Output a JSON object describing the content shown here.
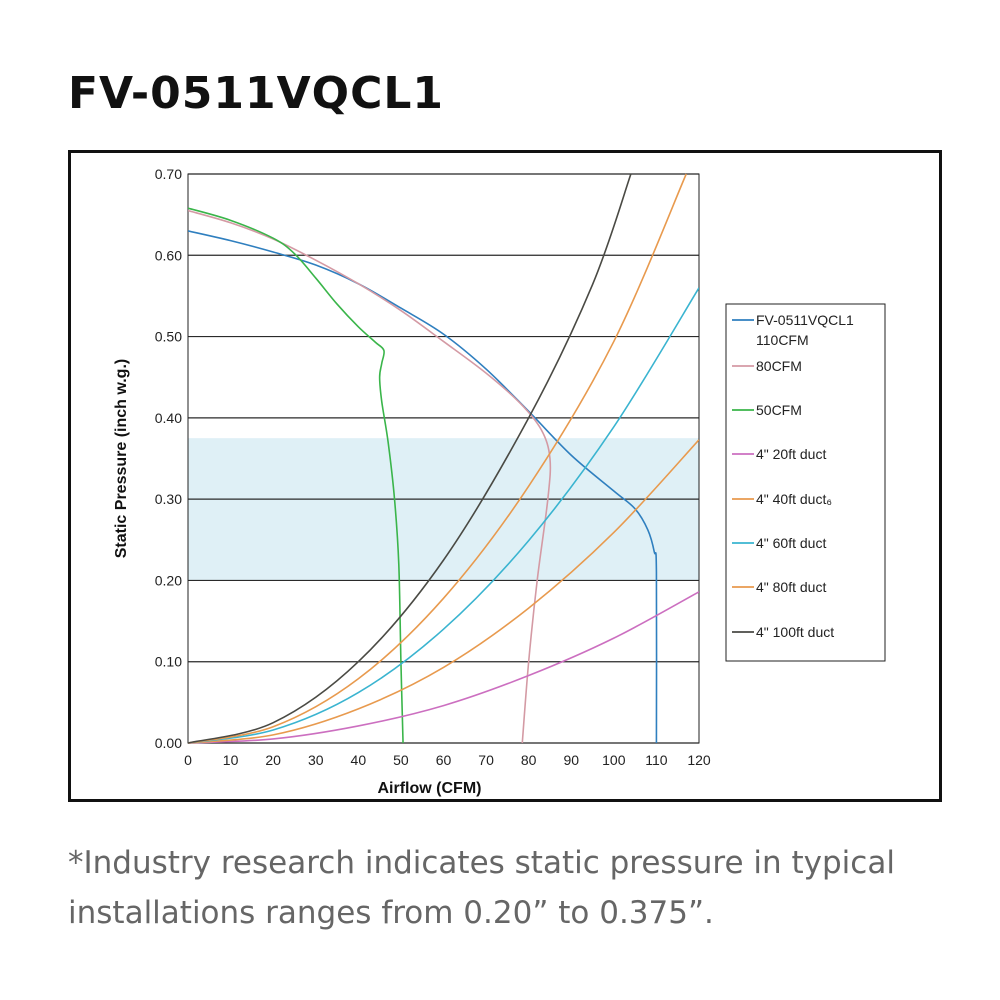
{
  "page": {
    "title": "FV-0511VQCL1",
    "footnote": "*Industry research indicates static pressure in typical installations ranges from 0.20” to 0.375”."
  },
  "chart_data": {
    "type": "line",
    "xlabel": "Airflow (CFM)",
    "ylabel": "Static Pressure (inch w.g.)",
    "xlim": [
      0,
      120
    ],
    "ylim": [
      0,
      0.7
    ],
    "x_ticks": [
      "0",
      "10",
      "20",
      "30",
      "40",
      "50",
      "60",
      "70",
      "80",
      "90",
      "100",
      "110",
      "120"
    ],
    "y_ticks": [
      "0.00",
      "0.10",
      "0.20",
      "0.30",
      "0.40",
      "0.50",
      "0.60",
      "0.70"
    ],
    "grid": "horizontal",
    "legend_position": "right",
    "highlight_band": {
      "y_from": 0.2,
      "y_to": 0.375,
      "color": "#dff0f6"
    },
    "series": [
      {
        "name": "FV-0511VQCL1",
        "name_line2": "110CFM",
        "color": "#2f7fbf",
        "points": [
          [
            0,
            0.63
          ],
          [
            10,
            0.618
          ],
          [
            20,
            0.604
          ],
          [
            30,
            0.588
          ],
          [
            40,
            0.565
          ],
          [
            50,
            0.535
          ],
          [
            60,
            0.503
          ],
          [
            70,
            0.46
          ],
          [
            80,
            0.408
          ],
          [
            90,
            0.354
          ],
          [
            100,
            0.31
          ],
          [
            105,
            0.288
          ],
          [
            108,
            0.262
          ],
          [
            109.5,
            0.235
          ],
          [
            110,
            0.21
          ],
          [
            110,
            0
          ]
        ]
      },
      {
        "name": "80CFM",
        "color": "#d49aa4",
        "points": [
          [
            0,
            0.655
          ],
          [
            10,
            0.64
          ],
          [
            20,
            0.62
          ],
          [
            30,
            0.594
          ],
          [
            40,
            0.565
          ],
          [
            50,
            0.532
          ],
          [
            60,
            0.494
          ],
          [
            70,
            0.455
          ],
          [
            78,
            0.418
          ],
          [
            83,
            0.385
          ],
          [
            85,
            0.35
          ],
          [
            84.5,
            0.3
          ],
          [
            82,
            0.2
          ],
          [
            80,
            0.1
          ],
          [
            78.5,
            0
          ]
        ]
      },
      {
        "name": "50CFM",
        "color": "#3ab54a",
        "points": [
          [
            0,
            0.658
          ],
          [
            10,
            0.643
          ],
          [
            20,
            0.621
          ],
          [
            25,
            0.602
          ],
          [
            30,
            0.572
          ],
          [
            35,
            0.54
          ],
          [
            40,
            0.512
          ],
          [
            44,
            0.493
          ],
          [
            46,
            0.483
          ],
          [
            45.5,
            0.467
          ],
          [
            45,
            0.45
          ],
          [
            45.5,
            0.42
          ],
          [
            47,
            0.37
          ],
          [
            48.5,
            0.3
          ],
          [
            49.5,
            0.22
          ],
          [
            50,
            0.1
          ],
          [
            50.5,
            0
          ]
        ]
      },
      {
        "name": "4\" 20ft duct",
        "color": "#cc6fc0",
        "points": [
          [
            0,
            0
          ],
          [
            20,
            0.005
          ],
          [
            40,
            0.021
          ],
          [
            60,
            0.046
          ],
          [
            80,
            0.083
          ],
          [
            100,
            0.129
          ],
          [
            120,
            0.186
          ]
        ]
      },
      {
        "name": "4\" 40ft duct₆",
        "color": "#e89a4e",
        "points": [
          [
            0,
            0
          ],
          [
            20,
            0.01
          ],
          [
            40,
            0.042
          ],
          [
            60,
            0.093
          ],
          [
            80,
            0.166
          ],
          [
            100,
            0.259
          ],
          [
            120,
            0.373
          ]
        ]
      },
      {
        "name": "4\" 60ft duct",
        "color": "#3ab4d0",
        "points": [
          [
            0,
            0
          ],
          [
            20,
            0.016
          ],
          [
            40,
            0.062
          ],
          [
            60,
            0.14
          ],
          [
            80,
            0.249
          ],
          [
            100,
            0.389
          ],
          [
            120,
            0.56
          ]
        ]
      },
      {
        "name": "4\" 80ft duct",
        "color": "#e89a4e",
        "points": [
          [
            0,
            0
          ],
          [
            20,
            0.02
          ],
          [
            40,
            0.079
          ],
          [
            60,
            0.178
          ],
          [
            80,
            0.316
          ],
          [
            100,
            0.494
          ],
          [
            117,
            0.7
          ]
        ]
      },
      {
        "name": "4\" 100ft duct",
        "color": "#4a4a44",
        "points": [
          [
            0,
            0
          ],
          [
            20,
            0.025
          ],
          [
            40,
            0.1
          ],
          [
            60,
            0.225
          ],
          [
            80,
            0.4
          ],
          [
            95,
            0.564
          ],
          [
            104,
            0.7
          ]
        ]
      }
    ]
  }
}
